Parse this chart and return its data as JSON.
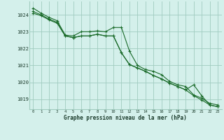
{
  "xlabel": "Graphe pression niveau de la mer (hPa)",
  "xlim": [
    -0.5,
    23.5
  ],
  "ylim": [
    1018.4,
    1024.8
  ],
  "yticks": [
    1019,
    1020,
    1021,
    1022,
    1023,
    1024
  ],
  "xticks": [
    0,
    1,
    2,
    3,
    4,
    5,
    6,
    7,
    8,
    9,
    10,
    11,
    12,
    13,
    14,
    15,
    16,
    17,
    18,
    19,
    20,
    21,
    22,
    23
  ],
  "background_color": "#d4f0eb",
  "grid_color": "#a0ccbf",
  "line_color": "#1a6b2a",
  "series": [
    {
      "x": [
        0,
        1,
        2,
        3,
        4,
        5,
        6,
        7,
        8,
        9,
        10,
        11,
        12,
        13,
        14,
        15,
        16,
        17,
        18,
        19,
        20,
        21,
        22,
        23
      ],
      "y": [
        1024.4,
        1024.1,
        1023.85,
        1023.65,
        1022.8,
        1022.75,
        1023.0,
        1023.0,
        1023.05,
        1023.0,
        1023.25,
        1023.25,
        1021.85,
        1021.0,
        1020.75,
        1020.65,
        1020.45,
        1020.05,
        1019.85,
        1019.75,
        1019.25,
        1019.05,
        1018.75,
        1018.65
      ]
    },
    {
      "x": [
        0,
        1,
        2,
        3,
        4,
        5,
        6,
        7,
        8,
        9,
        10,
        11,
        12,
        13,
        14,
        15,
        16,
        17,
        18,
        19,
        20,
        21,
        22,
        23
      ],
      "y": [
        1024.1,
        1023.95,
        1023.7,
        1023.5,
        1022.75,
        1022.65,
        1022.75,
        1022.75,
        1022.85,
        1022.75,
        1022.75,
        1021.75,
        1021.05,
        1020.85,
        1020.65,
        1020.4,
        1020.2,
        1019.95,
        1019.75,
        1019.55,
        1019.85,
        1019.2,
        1018.65,
        1018.55
      ]
    },
    {
      "x": [
        0,
        1,
        2,
        3,
        4,
        5,
        6,
        7,
        8,
        9,
        10,
        11,
        12,
        13,
        14,
        15,
        16,
        17,
        18,
        19,
        20,
        21,
        22,
        23
      ],
      "y": [
        1024.2,
        1024.0,
        1023.75,
        1023.55,
        1022.75,
        1022.65,
        1022.75,
        1022.75,
        1022.85,
        1022.75,
        1022.75,
        1021.75,
        1021.05,
        1020.85,
        1020.65,
        1020.4,
        1020.2,
        1019.95,
        1019.75,
        1019.55,
        1019.2,
        1018.95,
        1018.65,
        1018.55
      ]
    }
  ]
}
